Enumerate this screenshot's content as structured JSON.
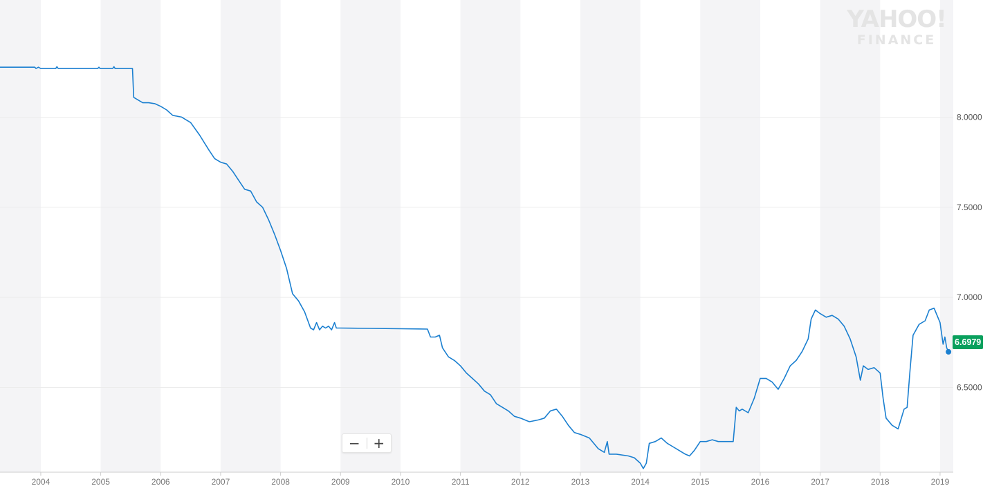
{
  "watermark": {
    "line1": "YAHOO!",
    "line2": "FINANCE"
  },
  "zoom_controls": {
    "zoom_out": "−",
    "zoom_in": "+"
  },
  "current_price": {
    "label": "6.6979",
    "value": 6.6979,
    "color": "#09a05d"
  },
  "colors": {
    "line": "#1a7fd0",
    "band": "#f4f4f6",
    "grid": "#ececec"
  },
  "chart_data": {
    "type": "line",
    "title": "",
    "xlabel": "",
    "ylabel": "",
    "grid": true,
    "xlim": [
      2003.32,
      2019.22
    ],
    "ylim": [
      6.03,
      8.65
    ],
    "y_ticks": [
      "8.0000",
      "7.5000",
      "7.0000",
      "6.5000"
    ],
    "x_ticks": [
      "2004",
      "2005",
      "2006",
      "2007",
      "2008",
      "2009",
      "2010",
      "2011",
      "2012",
      "2013",
      "2014",
      "2015",
      "2016",
      "2017",
      "2018",
      "2019"
    ],
    "series": [
      {
        "name": "",
        "points": [
          [
            2003.32,
            8.277
          ],
          [
            2003.9,
            8.277
          ],
          [
            2003.92,
            8.27
          ],
          [
            2003.96,
            8.277
          ],
          [
            2004.0,
            8.27
          ],
          [
            2004.25,
            8.27
          ],
          [
            2004.27,
            8.28
          ],
          [
            2004.29,
            8.27
          ],
          [
            2004.95,
            8.27
          ],
          [
            2004.97,
            8.277
          ],
          [
            2004.99,
            8.27
          ],
          [
            2005.2,
            8.27
          ],
          [
            2005.22,
            8.28
          ],
          [
            2005.24,
            8.27
          ],
          [
            2005.53,
            8.27
          ],
          [
            2005.55,
            8.11
          ],
          [
            2005.6,
            8.1
          ],
          [
            2005.7,
            8.08
          ],
          [
            2005.8,
            8.08
          ],
          [
            2005.9,
            8.075
          ],
          [
            2006.0,
            8.06
          ],
          [
            2006.1,
            8.04
          ],
          [
            2006.2,
            8.01
          ],
          [
            2006.35,
            8.0
          ],
          [
            2006.5,
            7.97
          ],
          [
            2006.65,
            7.9
          ],
          [
            2006.8,
            7.82
          ],
          [
            2006.9,
            7.77
          ],
          [
            2007.0,
            7.75
          ],
          [
            2007.1,
            7.74
          ],
          [
            2007.2,
            7.7
          ],
          [
            2007.3,
            7.65
          ],
          [
            2007.4,
            7.6
          ],
          [
            2007.5,
            7.59
          ],
          [
            2007.55,
            7.56
          ],
          [
            2007.6,
            7.53
          ],
          [
            2007.7,
            7.5
          ],
          [
            2007.8,
            7.43
          ],
          [
            2007.9,
            7.35
          ],
          [
            2008.0,
            7.26
          ],
          [
            2008.1,
            7.16
          ],
          [
            2008.2,
            7.02
          ],
          [
            2008.3,
            6.98
          ],
          [
            2008.4,
            6.92
          ],
          [
            2008.5,
            6.83
          ],
          [
            2008.55,
            6.82
          ],
          [
            2008.6,
            6.86
          ],
          [
            2008.65,
            6.82
          ],
          [
            2008.7,
            6.84
          ],
          [
            2008.75,
            6.83
          ],
          [
            2008.8,
            6.84
          ],
          [
            2008.85,
            6.82
          ],
          [
            2008.9,
            6.86
          ],
          [
            2008.93,
            6.83
          ],
          [
            2009.0,
            6.83
          ],
          [
            2009.5,
            6.828
          ],
          [
            2010.0,
            6.826
          ],
          [
            2010.3,
            6.825
          ],
          [
            2010.45,
            6.824
          ],
          [
            2010.5,
            6.78
          ],
          [
            2010.58,
            6.78
          ],
          [
            2010.65,
            6.79
          ],
          [
            2010.7,
            6.72
          ],
          [
            2010.8,
            6.67
          ],
          [
            2010.9,
            6.65
          ],
          [
            2011.0,
            6.62
          ],
          [
            2011.1,
            6.58
          ],
          [
            2011.2,
            6.55
          ],
          [
            2011.3,
            6.52
          ],
          [
            2011.4,
            6.48
          ],
          [
            2011.5,
            6.46
          ],
          [
            2011.6,
            6.41
          ],
          [
            2011.7,
            6.39
          ],
          [
            2011.8,
            6.37
          ],
          [
            2011.9,
            6.34
          ],
          [
            2012.0,
            6.33
          ],
          [
            2012.15,
            6.31
          ],
          [
            2012.3,
            6.32
          ],
          [
            2012.4,
            6.33
          ],
          [
            2012.5,
            6.37
          ],
          [
            2012.6,
            6.38
          ],
          [
            2012.7,
            6.34
          ],
          [
            2012.8,
            6.29
          ],
          [
            2012.9,
            6.25
          ],
          [
            2013.0,
            6.24
          ],
          [
            2013.15,
            6.22
          ],
          [
            2013.3,
            6.16
          ],
          [
            2013.4,
            6.14
          ],
          [
            2013.45,
            6.2
          ],
          [
            2013.48,
            6.13
          ],
          [
            2013.6,
            6.13
          ],
          [
            2013.8,
            6.12
          ],
          [
            2013.9,
            6.11
          ],
          [
            2014.0,
            6.08
          ],
          [
            2014.05,
            6.05
          ],
          [
            2014.1,
            6.08
          ],
          [
            2014.15,
            6.19
          ],
          [
            2014.25,
            6.2
          ],
          [
            2014.35,
            6.22
          ],
          [
            2014.45,
            6.19
          ],
          [
            2014.55,
            6.17
          ],
          [
            2014.65,
            6.15
          ],
          [
            2014.75,
            6.13
          ],
          [
            2014.82,
            6.12
          ],
          [
            2014.9,
            6.15
          ],
          [
            2015.0,
            6.2
          ],
          [
            2015.1,
            6.2
          ],
          [
            2015.2,
            6.21
          ],
          [
            2015.3,
            6.2
          ],
          [
            2015.45,
            6.2
          ],
          [
            2015.55,
            6.2
          ],
          [
            2015.6,
            6.39
          ],
          [
            2015.65,
            6.37
          ],
          [
            2015.7,
            6.38
          ],
          [
            2015.8,
            6.36
          ],
          [
            2015.9,
            6.44
          ],
          [
            2016.0,
            6.55
          ],
          [
            2016.1,
            6.55
          ],
          [
            2016.2,
            6.53
          ],
          [
            2016.3,
            6.49
          ],
          [
            2016.4,
            6.55
          ],
          [
            2016.5,
            6.62
          ],
          [
            2016.6,
            6.65
          ],
          [
            2016.7,
            6.7
          ],
          [
            2016.8,
            6.77
          ],
          [
            2016.85,
            6.88
          ],
          [
            2016.92,
            6.93
          ],
          [
            2017.0,
            6.91
          ],
          [
            2017.1,
            6.89
          ],
          [
            2017.2,
            6.9
          ],
          [
            2017.3,
            6.88
          ],
          [
            2017.4,
            6.84
          ],
          [
            2017.5,
            6.77
          ],
          [
            2017.6,
            6.67
          ],
          [
            2017.67,
            6.54
          ],
          [
            2017.72,
            6.62
          ],
          [
            2017.8,
            6.6
          ],
          [
            2017.9,
            6.61
          ],
          [
            2018.0,
            6.58
          ],
          [
            2018.05,
            6.44
          ],
          [
            2018.1,
            6.33
          ],
          [
            2018.2,
            6.29
          ],
          [
            2018.3,
            6.27
          ],
          [
            2018.4,
            6.38
          ],
          [
            2018.45,
            6.39
          ],
          [
            2018.5,
            6.6
          ],
          [
            2018.55,
            6.79
          ],
          [
            2018.65,
            6.85
          ],
          [
            2018.75,
            6.87
          ],
          [
            2018.82,
            6.93
          ],
          [
            2018.9,
            6.94
          ],
          [
            2019.0,
            6.86
          ],
          [
            2019.05,
            6.74
          ],
          [
            2019.08,
            6.78
          ],
          [
            2019.11,
            6.72
          ],
          [
            2019.14,
            6.6979
          ]
        ]
      }
    ]
  }
}
